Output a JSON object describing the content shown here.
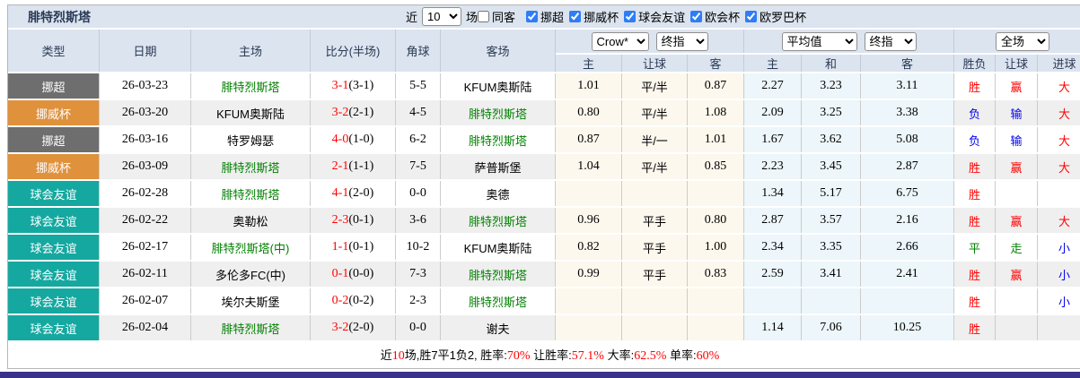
{
  "title": "腓特烈斯塔",
  "controls": {
    "recent_label": "近",
    "recent_value": "10",
    "games_label": "场",
    "same_away_label": "同客",
    "same_away_checked": false,
    "leagues": [
      {
        "label": "挪超",
        "checked": true
      },
      {
        "label": "挪威杯",
        "checked": true
      },
      {
        "label": "球会友谊",
        "checked": true
      },
      {
        "label": "欧会杯",
        "checked": true
      },
      {
        "label": "欧罗巴杯",
        "checked": true
      }
    ]
  },
  "table": {
    "main_headers": [
      "类型",
      "日期",
      "主场",
      "比分(半场)",
      "角球",
      "客场"
    ],
    "odds_selects": {
      "asian": [
        "Crow*",
        "终指"
      ],
      "euro": [
        "平均值",
        "终指"
      ],
      "scope": [
        "全场"
      ]
    },
    "sub_headers": [
      "主",
      "让球",
      "客",
      "主",
      "和",
      "客",
      "胜负",
      "让球",
      "进球"
    ],
    "rows": [
      {
        "type": "挪超",
        "type_color": "#6e6e6e",
        "date": "26-03-23",
        "home": "腓特烈斯塔",
        "home_hl": true,
        "score": "3-1",
        "half": "(3-1)",
        "corners": "5-5",
        "away": "KFUM奥斯陆",
        "away_hl": false,
        "ah": [
          "1.01",
          "平/半",
          "0.87"
        ],
        "eu": [
          "2.27",
          "3.23",
          "3.11"
        ],
        "results": [
          {
            "t": "胜",
            "c": "red"
          },
          {
            "t": "赢",
            "c": "red"
          },
          {
            "t": "大",
            "c": "red"
          }
        ]
      },
      {
        "type": "挪威杯",
        "type_color": "#e0913c",
        "date": "26-03-20",
        "home": "KFUM奥斯陆",
        "home_hl": false,
        "score": "3-2",
        "half": "(2-1)",
        "corners": "4-5",
        "away": "腓特烈斯塔",
        "away_hl": true,
        "ah": [
          "0.80",
          "平/半",
          "1.08"
        ],
        "eu": [
          "2.09",
          "3.25",
          "3.38"
        ],
        "results": [
          {
            "t": "负",
            "c": "blue"
          },
          {
            "t": "输",
            "c": "blue"
          },
          {
            "t": "大",
            "c": "red"
          }
        ]
      },
      {
        "type": "挪超",
        "type_color": "#6e6e6e",
        "date": "26-03-16",
        "home": "特罗姆瑟",
        "home_hl": false,
        "score": "4-0",
        "half": "(1-0)",
        "corners": "6-2",
        "away": "腓特烈斯塔",
        "away_hl": true,
        "ah": [
          "0.87",
          "半/一",
          "1.01"
        ],
        "eu": [
          "1.67",
          "3.62",
          "5.08"
        ],
        "results": [
          {
            "t": "负",
            "c": "blue"
          },
          {
            "t": "输",
            "c": "blue"
          },
          {
            "t": "大",
            "c": "red"
          }
        ]
      },
      {
        "type": "挪威杯",
        "type_color": "#e0913c",
        "date": "26-03-09",
        "home": "腓特烈斯塔",
        "home_hl": true,
        "score": "2-1",
        "half": "(1-1)",
        "corners": "7-5",
        "away": "萨普斯堡",
        "away_hl": false,
        "ah": [
          "1.04",
          "平/半",
          "0.85"
        ],
        "eu": [
          "2.23",
          "3.45",
          "2.87"
        ],
        "results": [
          {
            "t": "胜",
            "c": "red"
          },
          {
            "t": "赢",
            "c": "red"
          },
          {
            "t": "大",
            "c": "red"
          }
        ]
      },
      {
        "type": "球会友谊",
        "type_color": "#15a8a0",
        "date": "26-02-28",
        "home": "腓特烈斯塔",
        "home_hl": true,
        "score": "4-1",
        "half": "(2-0)",
        "corners": "0-0",
        "away": "奥德",
        "away_hl": false,
        "ah": [
          "",
          "",
          ""
        ],
        "eu": [
          "1.34",
          "5.17",
          "6.75"
        ],
        "results": [
          {
            "t": "胜",
            "c": "red"
          },
          {
            "t": "",
            "c": "black"
          },
          {
            "t": "",
            "c": "black"
          }
        ]
      },
      {
        "type": "球会友谊",
        "type_color": "#15a8a0",
        "date": "26-02-22",
        "home": "奥勒松",
        "home_hl": false,
        "score": "2-3",
        "half": "(0-1)",
        "corners": "3-6",
        "away": "腓特烈斯塔",
        "away_hl": true,
        "ah": [
          "0.96",
          "平手",
          "0.80"
        ],
        "eu": [
          "2.87",
          "3.57",
          "2.16"
        ],
        "results": [
          {
            "t": "胜",
            "c": "red"
          },
          {
            "t": "赢",
            "c": "red"
          },
          {
            "t": "大",
            "c": "red"
          }
        ]
      },
      {
        "type": "球会友谊",
        "type_color": "#15a8a0",
        "date": "26-02-17",
        "home": "腓特烈斯塔(中)",
        "home_hl": true,
        "score": "1-1",
        "half": "(0-1)",
        "corners": "10-2",
        "away": "KFUM奥斯陆",
        "away_hl": false,
        "ah": [
          "0.82",
          "平手",
          "1.00"
        ],
        "eu": [
          "2.34",
          "3.35",
          "2.66"
        ],
        "results": [
          {
            "t": "平",
            "c": "green"
          },
          {
            "t": "走",
            "c": "green"
          },
          {
            "t": "小",
            "c": "blue"
          }
        ]
      },
      {
        "type": "球会友谊",
        "type_color": "#15a8a0",
        "date": "26-02-11",
        "home": "多伦多FC(中)",
        "home_hl": false,
        "score": "0-1",
        "half": "(0-0)",
        "corners": "7-3",
        "away": "腓特烈斯塔",
        "away_hl": true,
        "ah": [
          "0.99",
          "平手",
          "0.83"
        ],
        "eu": [
          "2.59",
          "3.41",
          "2.41"
        ],
        "results": [
          {
            "t": "胜",
            "c": "red"
          },
          {
            "t": "赢",
            "c": "red"
          },
          {
            "t": "小",
            "c": "blue"
          }
        ]
      },
      {
        "type": "球会友谊",
        "type_color": "#15a8a0",
        "date": "26-02-07",
        "home": "埃尔夫斯堡",
        "home_hl": false,
        "score": "0-2",
        "half": "(0-2)",
        "corners": "2-3",
        "away": "腓特烈斯塔",
        "away_hl": true,
        "ah": [
          "",
          "",
          ""
        ],
        "eu": [
          "",
          "",
          ""
        ],
        "results": [
          {
            "t": "胜",
            "c": "red"
          },
          {
            "t": "",
            "c": "black"
          },
          {
            "t": "小",
            "c": "blue"
          }
        ]
      },
      {
        "type": "球会友谊",
        "type_color": "#15a8a0",
        "date": "26-02-04",
        "home": "腓特烈斯塔",
        "home_hl": true,
        "score": "3-2",
        "half": "(2-0)",
        "corners": "0-0",
        "away": "谢夫",
        "away_hl": false,
        "ah": [
          "",
          "",
          ""
        ],
        "eu": [
          "1.14",
          "7.06",
          "10.25"
        ],
        "results": [
          {
            "t": "胜",
            "c": "red"
          },
          {
            "t": "",
            "c": "black"
          },
          {
            "t": "",
            "c": "black"
          }
        ]
      }
    ]
  },
  "footer": {
    "segments": [
      {
        "t": "近",
        "c": "black"
      },
      {
        "t": "10",
        "c": "red"
      },
      {
        "t": "场,胜7平1负2, 胜率:",
        "c": "black"
      },
      {
        "t": "70%",
        "c": "red"
      },
      {
        "t": " 让胜率:",
        "c": "black"
      },
      {
        "t": "57.1%",
        "c": "red"
      },
      {
        "t": " 大率:",
        "c": "black"
      },
      {
        "t": "62.5%",
        "c": "red"
      },
      {
        "t": " 单率:",
        "c": "black"
      },
      {
        "t": "60%",
        "c": "red"
      }
    ]
  },
  "colors": {
    "red": "#ff0000",
    "blue": "#0000ee",
    "green": "#008000",
    "black": "#000000",
    "header_bg": "#dbe4ef",
    "row_alt_bg": "#efefef",
    "asian_odds_bg": "#fdf8ee",
    "euro_odds_bg": "#edf6fa",
    "bottom_bar": "#3a3189",
    "league_nor_premier": "#6e6e6e",
    "league_nor_cup": "#e0913c",
    "league_friendly": "#15a8a0",
    "highlight_team": "#008000"
  }
}
